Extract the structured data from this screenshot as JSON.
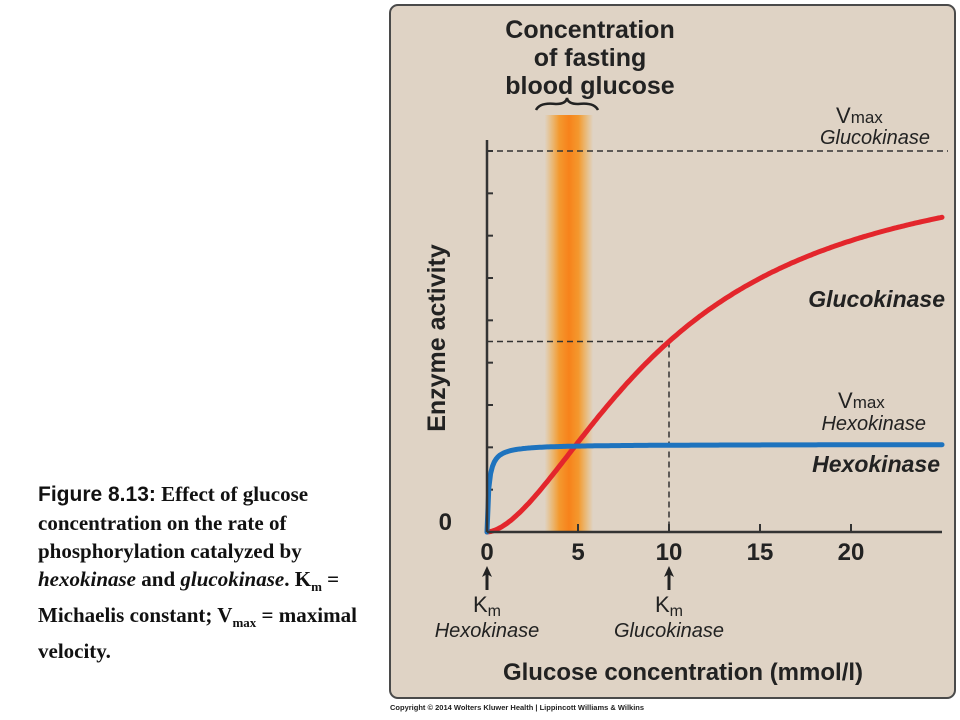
{
  "chart_data": {
    "type": "line",
    "xlabel": "Glucose concentration (mmol/l)",
    "ylabel": "Enzyme activity",
    "x_ticks": [
      "0",
      "5",
      "10",
      "15",
      "20"
    ],
    "y_tick_labels": [
      "0"
    ],
    "xlim": [
      0,
      25
    ],
    "ylim": [
      0,
      1.0
    ],
    "series": [
      {
        "name": "Glucokinase",
        "color": "#e3262c",
        "km": 10,
        "vmax": 1.0,
        "hill": 1.7
      },
      {
        "name": "Hexokinase",
        "color": "#1e73be",
        "km": 0.1,
        "vmax": 0.23
      }
    ],
    "annotations": {
      "fasting_title": [
        "Concentration",
        "of fasting",
        "blood glucose"
      ],
      "fasting_range": [
        3.5,
        5.5
      ],
      "vmax_glucokinase": {
        "v": "V",
        "sub": "max",
        "enzyme": "Glucokinase"
      },
      "vmax_hexokinase": {
        "v": "V",
        "sub": "max",
        "enzyme": "Hexokinase"
      },
      "km_hexokinase": {
        "k": "K",
        "sub": "m",
        "enzyme": "Hexokinase",
        "x": 0
      },
      "km_glucokinase": {
        "k": "K",
        "sub": "m",
        "enzyme": "Glucokinase",
        "x": 10
      }
    }
  },
  "caption": {
    "fig_label": "Figure 8.13:",
    "t1": " Effect of glucose concentration on the rate of phosphorylation catalyzed by ",
    "hexokinase": "hexokinase",
    "and": " and ",
    "glucokinase": "glucokinase",
    "t2": ". K",
    "km_sub": "m",
    "t3": " = Michaelis constant; V",
    "vmax_sub": "max",
    "t4": " = maximal velocity."
  },
  "copyright": "Copyright © 2014 Wolters Kluwer Health | Lippincott Williams & Wilkins"
}
